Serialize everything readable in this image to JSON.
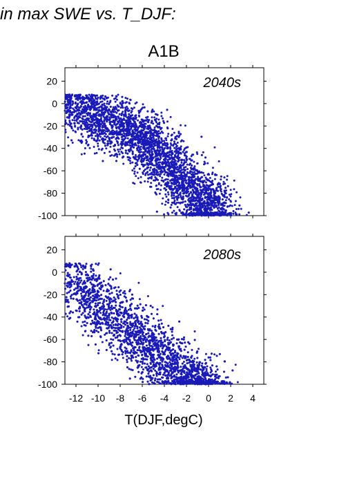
{
  "header": {
    "title": "in max SWE vs. T_DJF:",
    "subtitle": "A1B"
  },
  "colors": {
    "points": "#1a1ab8",
    "axes": "#000000",
    "period_label": "#1a1ab8"
  },
  "chart_data": [
    {
      "type": "scatter",
      "title": "2040s",
      "xlabel": "",
      "ylabel": "",
      "xlim": [
        -13,
        5
      ],
      "ylim": [
        -100,
        32
      ],
      "yticks": [
        20,
        0,
        -20,
        -40,
        -60,
        -80,
        -100
      ],
      "xticks": [
        -12,
        -10,
        -8,
        -6,
        -4,
        -2,
        0,
        2,
        4
      ],
      "show_x_ticklabels": false,
      "grid": false,
      "legend": "none",
      "series": [
        {
          "description": "dense cloud of points, negative correlation",
          "cluster_points": [
            [
              -12.5,
              2
            ],
            [
              -11,
              -8
            ],
            [
              -10,
              -15
            ],
            [
              -8.5,
              -18
            ],
            [
              -7,
              -25
            ],
            [
              -6,
              -30
            ],
            [
              -5,
              -40
            ],
            [
              -4,
              -50
            ],
            [
              -3,
              -62
            ],
            [
              -2,
              -72
            ],
            [
              -1,
              -82
            ],
            [
              0,
              -92
            ],
            [
              0.5,
              -98
            ]
          ],
          "count": 3800
        }
      ]
    },
    {
      "type": "scatter",
      "title": "2080s",
      "xlabel": "T(DJF,degC)",
      "ylabel": "",
      "xlim": [
        -13,
        5
      ],
      "ylim": [
        -100,
        32
      ],
      "yticks": [
        20,
        0,
        -20,
        -40,
        -60,
        -80,
        -100
      ],
      "xticks": [
        -12,
        -10,
        -8,
        -6,
        -4,
        -2,
        0,
        2,
        4
      ],
      "show_x_ticklabels": true,
      "grid": false,
      "legend": "none",
      "series": [
        {
          "description": "dense cloud of points, negative correlation shifted warmer/lower",
          "cluster_points": [
            [
              -12.5,
              2
            ],
            [
              -11,
              -20
            ],
            [
              -10,
              -28
            ],
            [
              -8.5,
              -40
            ],
            [
              -7,
              -52
            ],
            [
              -6,
              -62
            ],
            [
              -5,
              -70
            ],
            [
              -4,
              -80
            ],
            [
              -3,
              -88
            ],
            [
              -2,
              -94
            ],
            [
              -1,
              -98
            ],
            [
              0,
              -100
            ]
          ],
          "count": 3600
        }
      ]
    }
  ]
}
